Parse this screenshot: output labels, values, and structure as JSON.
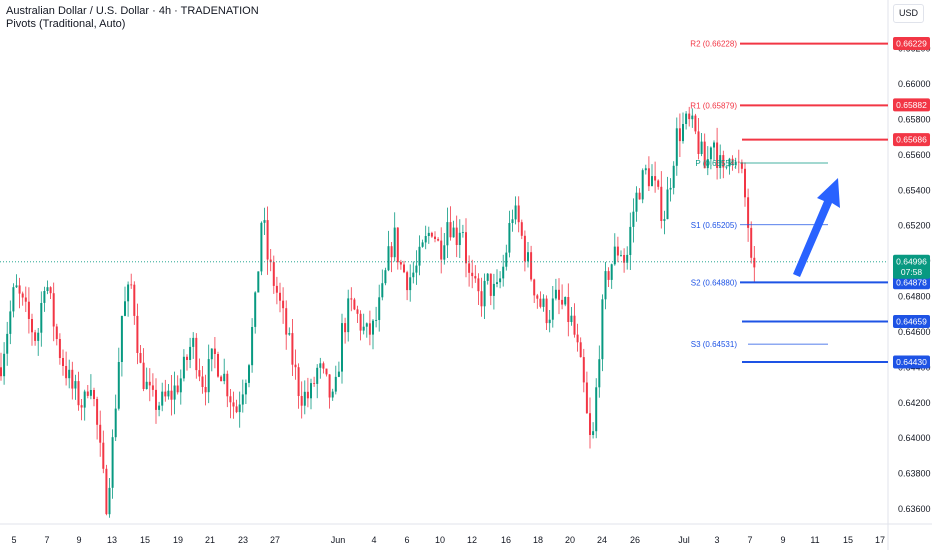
{
  "header": {
    "title": "Australian Dollar / U.S. Dollar · 4h · TRADENATION",
    "indicator": "Pivots (Traditional, Auto)"
  },
  "currency_button": "USD",
  "colors": {
    "up": "#089981",
    "down": "#f23645",
    "resistance": "#f23645",
    "support": "#1e53e5",
    "pivot": "#089981",
    "arrow": "#2962ff",
    "axis_text": "#131722"
  },
  "chart_data": {
    "type": "candlestick",
    "symbol": "AUDUSD",
    "timeframe": "4h",
    "ylim": [
      0.6352,
      0.6638
    ],
    "y_ticks": [
      "0.66200",
      "0.66000",
      "0.65800",
      "0.65600",
      "0.65400",
      "0.65200",
      "0.65000",
      "0.64800",
      "0.64600",
      "0.64400",
      "0.64200",
      "0.64000",
      "0.63800",
      "0.63600"
    ],
    "x_ticks": [
      "5",
      "7",
      "9",
      "13",
      "15",
      "19",
      "21",
      "23",
      "27",
      "Jun",
      "4",
      "6",
      "10",
      "12",
      "16",
      "18",
      "20",
      "24",
      "26",
      "Jul",
      "3",
      "7",
      "9",
      "11",
      "15",
      "17"
    ],
    "price_path": [
      [
        0,
        0.644
      ],
      [
        15,
        0.6485
      ],
      [
        26,
        0.647
      ],
      [
        37,
        0.6455
      ],
      [
        45,
        0.6493
      ],
      [
        58,
        0.6452
      ],
      [
        72,
        0.6428
      ],
      [
        84,
        0.6418
      ],
      [
        90,
        0.6438
      ],
      [
        98,
        0.6402
      ],
      [
        106,
        0.6363
      ],
      [
        112,
        0.6392
      ],
      [
        122,
        0.647
      ],
      [
        132,
        0.6487
      ],
      [
        140,
        0.644
      ],
      [
        152,
        0.642
      ],
      [
        162,
        0.642
      ],
      [
        172,
        0.6425
      ],
      [
        182,
        0.6435
      ],
      [
        192,
        0.6455
      ],
      [
        204,
        0.643
      ],
      [
        214,
        0.6447
      ],
      [
        224,
        0.6435
      ],
      [
        236,
        0.6415
      ],
      [
        248,
        0.6442
      ],
      [
        256,
        0.6478
      ],
      [
        262,
        0.6528
      ],
      [
        268,
        0.65
      ],
      [
        278,
        0.648
      ],
      [
        290,
        0.645
      ],
      [
        300,
        0.6425
      ],
      [
        310,
        0.6423
      ],
      [
        318,
        0.644
      ],
      [
        326,
        0.643
      ],
      [
        334,
        0.6418
      ],
      [
        342,
        0.646
      ],
      [
        350,
        0.6475
      ],
      [
        358,
        0.6468
      ],
      [
        366,
        0.6458
      ],
      [
        374,
        0.6462
      ],
      [
        382,
        0.648
      ],
      [
        388,
        0.65
      ],
      [
        394,
        0.6515
      ],
      [
        400,
        0.6498
      ],
      [
        408,
        0.649
      ],
      [
        416,
        0.6495
      ],
      [
        424,
        0.6508
      ],
      [
        432,
        0.652
      ],
      [
        440,
        0.6506
      ],
      [
        448,
        0.6525
      ],
      [
        456,
        0.6513
      ],
      [
        462,
        0.6524
      ],
      [
        468,
        0.6492
      ],
      [
        474,
        0.6484
      ],
      [
        480,
        0.6478
      ],
      [
        488,
        0.6488
      ],
      [
        496,
        0.648
      ],
      [
        504,
        0.6498
      ],
      [
        512,
        0.6528
      ],
      [
        518,
        0.6522
      ],
      [
        524,
        0.6508
      ],
      [
        532,
        0.649
      ],
      [
        540,
        0.6476
      ],
      [
        548,
        0.647
      ],
      [
        556,
        0.6478
      ],
      [
        564,
        0.6473
      ],
      [
        572,
        0.6465
      ],
      [
        578,
        0.6448
      ],
      [
        584,
        0.6427
      ],
      [
        588,
        0.6405
      ],
      [
        592,
        0.6392
      ],
      [
        596,
        0.6425
      ],
      [
        600,
        0.6458
      ],
      [
        606,
        0.649
      ],
      [
        614,
        0.6503
      ],
      [
        620,
        0.6508
      ],
      [
        626,
        0.6498
      ],
      [
        632,
        0.6525
      ],
      [
        638,
        0.654
      ],
      [
        646,
        0.655
      ],
      [
        652,
        0.6546
      ],
      [
        658,
        0.6535
      ],
      [
        664,
        0.6526
      ],
      [
        670,
        0.6545
      ],
      [
        676,
        0.657
      ],
      [
        682,
        0.6575
      ],
      [
        688,
        0.6578
      ],
      [
        694,
        0.6573
      ],
      [
        700,
        0.6563
      ],
      [
        706,
        0.655
      ],
      [
        712,
        0.6573
      ],
      [
        718,
        0.6558
      ],
      [
        724,
        0.6546
      ],
      [
        730,
        0.6566
      ],
      [
        736,
        0.6553
      ],
      [
        740,
        0.6552
      ],
      [
        744,
        0.654
      ],
      [
        748,
        0.6521
      ],
      [
        752,
        0.649
      ],
      [
        756,
        0.6488
      ]
    ],
    "pivot_levels": [
      {
        "label": "R2 (0.66228)",
        "value": 0.66228
      },
      {
        "label": "R1 (0.65879)",
        "value": 0.65879
      },
      {
        "label": "P (0.65554)",
        "value": 0.65554
      },
      {
        "label": "S1 (0.65205)",
        "value": 0.65205
      },
      {
        "label": "S2 (0.64880)",
        "value": 0.6488
      },
      {
        "label": "S3 (0.64531)",
        "value": 0.64531
      }
    ],
    "horizontal_levels": [
      {
        "value": 0.66229,
        "label": "0.66229",
        "kind": "resistance"
      },
      {
        "value": 0.65882,
        "label": "0.65882",
        "kind": "resistance"
      },
      {
        "value": 0.65686,
        "label": "0.65686",
        "kind": "resistance"
      },
      {
        "value": 0.64878,
        "label": "0.64878",
        "kind": "support"
      },
      {
        "value": 0.64659,
        "label": "0.64659",
        "kind": "support"
      },
      {
        "value": 0.6443,
        "label": "0.64430",
        "kind": "support"
      }
    ],
    "current_price": {
      "value": 0.64996,
      "label": "0.64996",
      "countdown": "07:58"
    },
    "annotation": "arrow-up"
  }
}
